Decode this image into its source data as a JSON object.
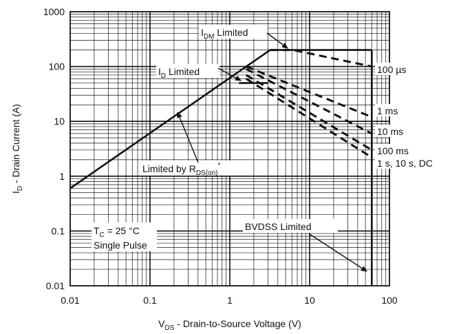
{
  "chart_data": {
    "type": "line",
    "xlabel": {
      "main": "V",
      "sub": "DS",
      "rest": " - Drain-to-Source Voltage (V)"
    },
    "ylabel": {
      "main": "I",
      "sub": "D",
      "rest": " - Drain Current (A)"
    },
    "x_scale": "log",
    "y_scale": "log",
    "xlim": [
      0.01,
      100
    ],
    "ylim": [
      0.01,
      1000
    ],
    "x_ticks": [
      "0.01",
      "0.1",
      "1",
      "10",
      "100"
    ],
    "y_ticks": [
      "0.01",
      "0.1",
      "1",
      "10",
      "100",
      "1000"
    ],
    "grid": true,
    "limits": {
      "idm_current": 200,
      "bvdss_voltage": 60
    },
    "series": [
      {
        "name": "Limited by RDS(on)",
        "style": "solid",
        "points": [
          [
            0.01,
            0.6
          ],
          [
            3.2,
            200
          ]
        ]
      },
      {
        "name": "IDM Limited",
        "style": "solid",
        "points": [
          [
            3.2,
            200
          ],
          [
            60,
            200
          ]
        ]
      },
      {
        "name": "BVDSS Limited",
        "style": "solid",
        "points": [
          [
            60,
            200
          ],
          [
            60,
            0.01
          ]
        ]
      },
      {
        "name": "ID Limited",
        "style": "solid",
        "points": [
          [
            1.3,
            50
          ],
          [
            3.0,
            50
          ]
        ]
      },
      {
        "name": "100 µs",
        "style": "dashed",
        "points": [
          [
            3.2,
            200
          ],
          [
            6.2,
            200
          ],
          [
            60,
            100
          ]
        ]
      },
      {
        "name": "1 ms",
        "style": "dashed",
        "points": [
          [
            1.6,
            100
          ],
          [
            60,
            12
          ]
        ]
      },
      {
        "name": "10 ms",
        "style": "dashed",
        "points": [
          [
            1.6,
            90
          ],
          [
            60,
            6
          ]
        ]
      },
      {
        "name": "100 ms",
        "style": "dashed",
        "points": [
          [
            1.6,
            70
          ],
          [
            60,
            3
          ]
        ]
      },
      {
        "name": "1 s, 10 s, DC",
        "style": "dashed",
        "points": [
          [
            1.6,
            60
          ],
          [
            60,
            2.2
          ]
        ]
      }
    ],
    "annotations": {
      "idm": {
        "main": "I",
        "sub": "DM",
        "rest": " Limited"
      },
      "id": {
        "main": "I",
        "sub": "D",
        "rest": " Limited"
      },
      "rds": {
        "pre": "Limited by R",
        "sub": "DS(on)",
        "sup": "*"
      },
      "bvdss": "BVDSS Limited",
      "tc": {
        "main": "T",
        "sub": "C",
        "rest": " = 25 °C"
      },
      "pulse": "Single Pulse",
      "t100us": "100 µs",
      "t1ms": "1 ms",
      "t10ms": "10 ms",
      "t100ms": "100 ms",
      "tdc": "1 s, 10 s, DC"
    }
  }
}
